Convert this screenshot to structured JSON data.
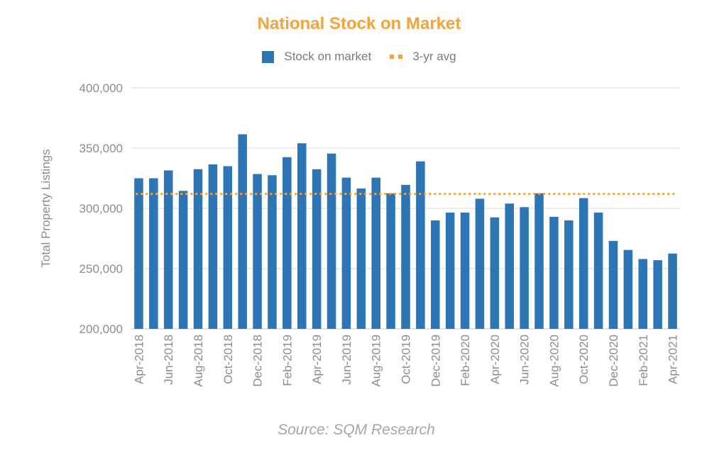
{
  "chart_data": {
    "type": "bar",
    "title": "National Stock on Market",
    "ylabel": "Total Property Listings",
    "xlabel": "",
    "ylim": [
      200000,
      400000
    ],
    "yticks": [
      200000,
      250000,
      300000,
      350000,
      400000
    ],
    "ytick_labels": [
      "200,000",
      "250,000",
      "300,000",
      "350,000",
      "400,000"
    ],
    "grid": true,
    "legend_position": "top-center",
    "categories": [
      "Apr-2018",
      "May-2018",
      "Jun-2018",
      "Jul-2018",
      "Aug-2018",
      "Sep-2018",
      "Oct-2018",
      "Nov-2018",
      "Dec-2018",
      "Jan-2019",
      "Feb-2019",
      "Mar-2019",
      "Apr-2019",
      "May-2019",
      "Jun-2019",
      "Jul-2019",
      "Aug-2019",
      "Sep-2019",
      "Oct-2019",
      "Nov-2019",
      "Dec-2019",
      "Jan-2020",
      "Feb-2020",
      "Mar-2020",
      "Apr-2020",
      "May-2020",
      "Jun-2020",
      "Jul-2020",
      "Aug-2020",
      "Sep-2020",
      "Oct-2020",
      "Nov-2020",
      "Dec-2020",
      "Jan-2021",
      "Feb-2021",
      "Mar-2021",
      "Apr-2021"
    ],
    "x_tick_labels": [
      "Apr-2018",
      "Jun-2018",
      "Aug-2018",
      "Oct-2018",
      "Dec-2018",
      "Feb-2019",
      "Apr-2019",
      "Jun-2019",
      "Aug-2019",
      "Oct-2019",
      "Dec-2019",
      "Feb-2020",
      "Apr-2020",
      "Jun-2020",
      "Aug-2020",
      "Oct-2020",
      "Dec-2020",
      "Feb-2021",
      "Apr-2021"
    ],
    "series": [
      {
        "name": "Stock on market",
        "type": "bar",
        "color": "#2E75B6",
        "values": [
          325000,
          325000,
          331500,
          314500,
          332500,
          336500,
          335000,
          361500,
          328500,
          327500,
          342500,
          354000,
          332500,
          345500,
          325500,
          316500,
          325500,
          312500,
          319500,
          339000,
          290000,
          296500,
          296500,
          308000,
          292500,
          304000,
          301000,
          312500,
          293000,
          290000,
          308500,
          296500,
          273000,
          265500,
          258000,
          257000,
          262500
        ]
      },
      {
        "name": "3-yr avg",
        "type": "line",
        "style": "dotted",
        "color": "#F4A23B",
        "value": 312000
      }
    ],
    "source": "Source: SQM Research"
  }
}
